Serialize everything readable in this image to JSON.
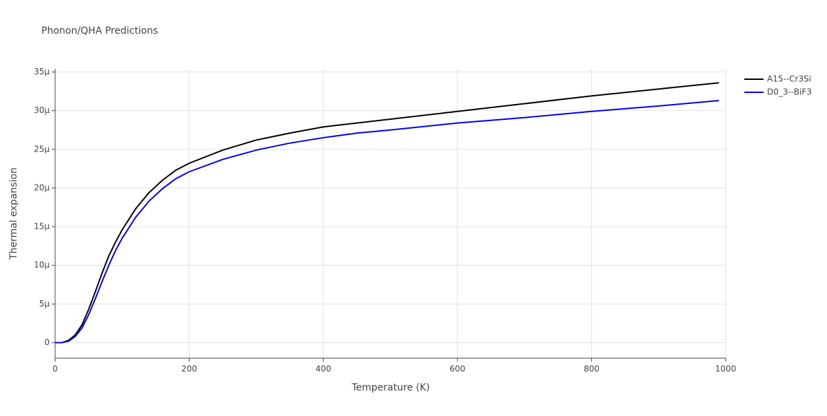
{
  "chart_data": {
    "type": "line",
    "title": "Phonon/QHA Predictions",
    "x_label": "Temperature (K)",
    "y_label": "Thermal expansion",
    "x": [
      0,
      10,
      20,
      30,
      40,
      50,
      60,
      70,
      80,
      90,
      100,
      120,
      140,
      160,
      180,
      200,
      250,
      300,
      350,
      400,
      450,
      500,
      600,
      700,
      800,
      900,
      990
    ],
    "series": [
      {
        "name": "A15--Cr3Si",
        "color": "#000000",
        "values": [
          0,
          0,
          0.3,
          1.0,
          2.3,
          4.3,
          6.6,
          9.0,
          11.2,
          13.0,
          14.6,
          17.3,
          19.4,
          21.0,
          22.3,
          23.2,
          24.9,
          26.2,
          27.1,
          27.9,
          28.4,
          28.9,
          29.9,
          30.9,
          31.9,
          32.8,
          33.6
        ]
      },
      {
        "name": "D0_3--BiF3",
        "color": "#0000ee",
        "values": [
          0,
          0,
          0.2,
          0.8,
          1.9,
          3.6,
          5.7,
          7.9,
          10.0,
          11.9,
          13.5,
          16.2,
          18.3,
          19.9,
          21.2,
          22.1,
          23.7,
          24.9,
          25.8,
          26.5,
          27.1,
          27.5,
          28.4,
          29.1,
          29.9,
          30.6,
          31.3
        ]
      }
    ],
    "xlim": [
      0,
      1000
    ],
    "xticks": [
      0,
      200,
      400,
      600,
      800,
      1000
    ],
    "ylim": [
      -2,
      35.4
    ],
    "yticks": [
      {
        "value": 0,
        "label": "0"
      },
      {
        "value": 5,
        "label": "5μ"
      },
      {
        "value": 10,
        "label": "10μ"
      },
      {
        "value": 15,
        "label": "15μ"
      },
      {
        "value": 20,
        "label": "20μ"
      },
      {
        "value": 25,
        "label": "25μ"
      },
      {
        "value": 30,
        "label": "30μ"
      },
      {
        "value": 35,
        "label": "35μ"
      }
    ],
    "grid": true,
    "legend": "right"
  }
}
